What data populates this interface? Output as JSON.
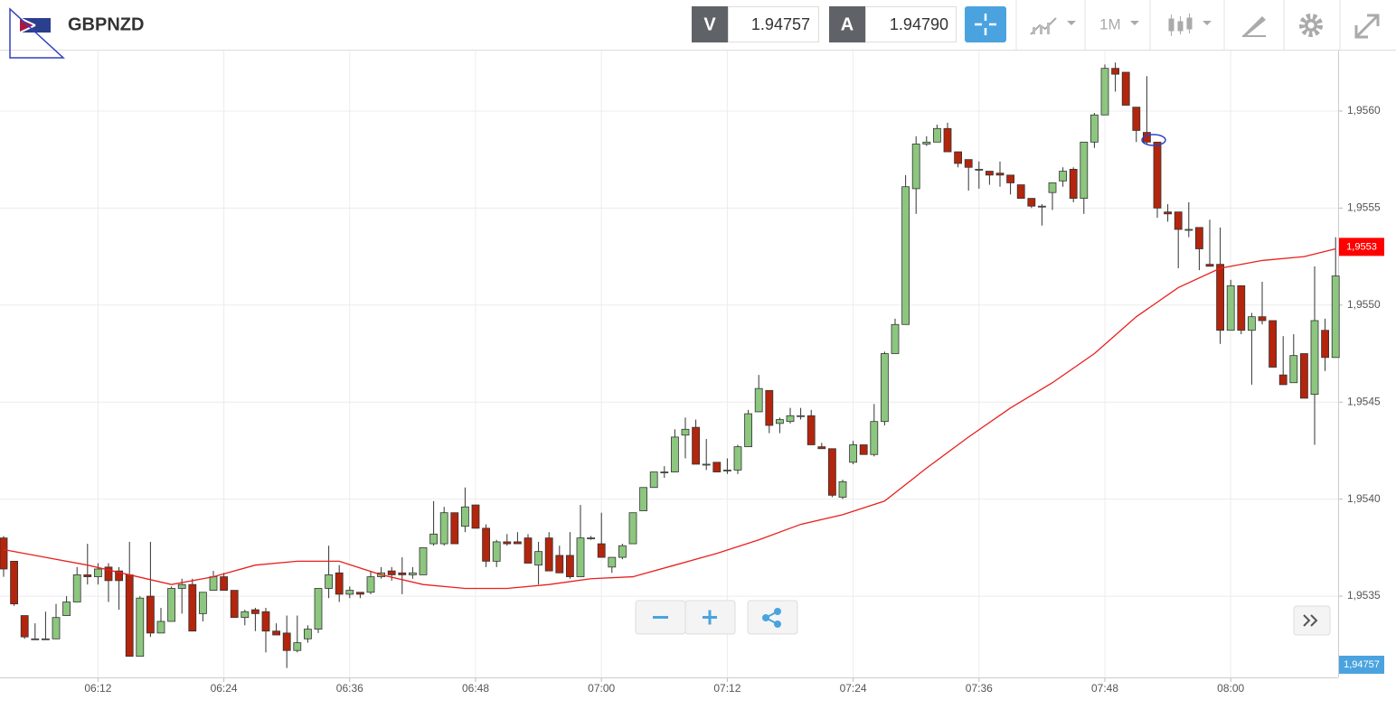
{
  "toolbar": {
    "symbol": "GBPNZD",
    "bid_label": "V",
    "bid": "1.94757",
    "ask_label": "A",
    "ask": "1.94790",
    "timeframe": "1M"
  },
  "chart_data": {
    "type": "candlestick",
    "categories": [
      "06:03",
      "06:04",
      "06:05",
      "06:06",
      "06:07",
      "06:08",
      "06:09",
      "06:10",
      "06:11",
      "06:12",
      "06:13",
      "06:14",
      "06:15",
      "06:16",
      "06:17",
      "06:18",
      "06:19",
      "06:20",
      "06:21",
      "06:22",
      "06:23",
      "06:24",
      "06:25",
      "06:26",
      "06:27",
      "06:28",
      "06:29",
      "06:30",
      "06:31",
      "06:32",
      "06:33",
      "06:34",
      "06:35",
      "06:36",
      "06:37",
      "06:38",
      "06:39",
      "06:40",
      "06:41",
      "06:42",
      "06:43",
      "06:44",
      "06:45",
      "06:46",
      "06:47",
      "06:48",
      "06:49",
      "06:50",
      "06:51",
      "06:52",
      "06:53",
      "06:54",
      "06:55",
      "06:56",
      "06:57",
      "06:58",
      "06:59",
      "07:00",
      "07:01",
      "07:02",
      "07:03",
      "07:04",
      "07:05",
      "07:06",
      "07:07",
      "07:08",
      "07:09",
      "07:10",
      "07:11",
      "07:12",
      "07:13",
      "07:14",
      "07:15",
      "07:16",
      "07:17",
      "07:18",
      "07:19",
      "07:20",
      "07:21",
      "07:22",
      "07:23",
      "07:24",
      "07:25",
      "07:26",
      "07:27",
      "07:28",
      "07:29",
      "07:30",
      "07:31",
      "07:32",
      "07:33",
      "07:34",
      "07:35",
      "07:36",
      "07:37",
      "07:38",
      "07:39",
      "07:40",
      "07:41",
      "07:42",
      "07:43",
      "07:44",
      "07:45",
      "07:46",
      "07:47",
      "07:48",
      "07:49",
      "07:50",
      "07:51",
      "07:52",
      "07:53",
      "07:54",
      "07:55",
      "07:56",
      "07:57",
      "07:58",
      "07:59",
      "08:00",
      "08:01",
      "08:02",
      "08:03",
      "08:04",
      "08:05",
      "08:06",
      "08:07",
      "08:08",
      "08:09",
      "08:10"
    ],
    "open": [
      1.9538,
      1.95368,
      1.9534,
      1.95328,
      1.95328,
      1.95328,
      1.9534,
      1.95347,
      1.95361,
      1.9536,
      1.95365,
      1.95363,
      1.95361,
      1.95319,
      1.9535,
      1.95331,
      1.95337,
      1.95354,
      1.95356,
      1.95341,
      1.95353,
      1.9536,
      1.95353,
      1.95339,
      1.95343,
      1.95342,
      1.95332,
      1.95331,
      1.95322,
      1.95328,
      1.95333,
      1.95354,
      1.95362,
      1.95351,
      1.95352,
      1.95352,
      1.9536,
      1.95363,
      1.95362,
      1.95361,
      1.95361,
      1.95377,
      1.95377,
      1.95393,
      1.95386,
      1.95397,
      1.95385,
      1.95368,
      1.95378,
      1.95378,
      1.9538,
      1.95366,
      1.9538,
      1.95371,
      1.95371,
      1.9536,
      1.9538,
      1.95377,
      1.95365,
      1.9537,
      1.95377,
      1.95394,
      1.95406,
      1.95414,
      1.95414,
      1.95433,
      1.95437,
      1.95418,
      1.95419,
      1.95415,
      1.95415,
      1.95427,
      1.95445,
      1.95456,
      1.95439,
      1.9544,
      1.95443,
      1.95443,
      1.95427,
      1.95426,
      1.95401,
      1.95419,
      1.95428,
      1.95423,
      1.9544,
      1.95475,
      1.9549,
      1.9556,
      1.95583,
      1.95584,
      1.95591,
      1.95579,
      1.95575,
      1.9557,
      1.95569,
      1.95568,
      1.95567,
      1.95562,
      1.95555,
      1.95551,
      1.95558,
      1.95564,
      1.9557,
      1.95555,
      1.95584,
      1.95598,
      1.95622,
      1.9562,
      1.95602,
      1.95589,
      1.95584,
      1.95548,
      1.95548,
      1.95539,
      1.9554,
      1.95521,
      1.95521,
      1.95487,
      1.9551,
      1.95487,
      1.95494,
      1.95492,
      1.95464,
      1.9546,
      1.95475,
      1.95454,
      1.95487,
      1.95473
    ],
    "high": [
      1.95381,
      1.95368,
      1.9534,
      1.95336,
      1.95342,
      1.95346,
      1.9535,
      1.95365,
      1.95377,
      1.95367,
      1.95367,
      1.95365,
      1.95378,
      1.9535,
      1.95378,
      1.95344,
      1.95355,
      1.95359,
      1.95359,
      1.95352,
      1.95363,
      1.95362,
      1.95353,
      1.95343,
      1.95344,
      1.95344,
      1.95336,
      1.9534,
      1.9534,
      1.95335,
      1.95354,
      1.95376,
      1.95366,
      1.95355,
      1.95352,
      1.95363,
      1.95365,
      1.95365,
      1.9537,
      1.95365,
      1.95375,
      1.95399,
      1.95396,
      1.95393,
      1.95406,
      1.95397,
      1.95387,
      1.95379,
      1.95382,
      1.95383,
      1.95382,
      1.95378,
      1.95383,
      1.95376,
      1.95383,
      1.95397,
      1.95381,
      1.95393,
      1.9537,
      1.95377,
      1.95393,
      1.95406,
      1.95414,
      1.95417,
      1.95436,
      1.95442,
      1.95441,
      1.95431,
      1.95419,
      1.95421,
      1.95428,
      1.95446,
      1.95464,
      1.95456,
      1.95442,
      1.95447,
      1.95447,
      1.95446,
      1.95429,
      1.95426,
      1.9541,
      1.9543,
      1.95428,
      1.95449,
      1.95476,
      1.95493,
      1.95567,
      1.95587,
      1.95587,
      1.95593,
      1.95594,
      1.95579,
      1.95575,
      1.95574,
      1.95569,
      1.95574,
      1.95567,
      1.95562,
      1.95555,
      1.95552,
      1.95563,
      1.95571,
      1.95571,
      1.95584,
      1.95599,
      1.95624,
      1.95625,
      1.9562,
      1.95602,
      1.95618,
      1.95584,
      1.95552,
      1.95548,
      1.95553,
      1.9554,
      1.95544,
      1.9554,
      1.95513,
      1.9551,
      1.95496,
      1.95512,
      1.95492,
      1.95484,
      1.95485,
      1.95475,
      1.9552,
      1.95493,
      1.95535
    ],
    "low": [
      1.9536,
      1.95345,
      1.95328,
      1.95328,
      1.95328,
      1.95328,
      1.9534,
      1.95347,
      1.95356,
      1.95356,
      1.95347,
      1.95343,
      1.95319,
      1.95319,
      1.95329,
      1.95331,
      1.95337,
      1.95341,
      1.95332,
      1.95337,
      1.95353,
      1.95353,
      1.95339,
      1.95335,
      1.95332,
      1.95321,
      1.9533,
      1.95313,
      1.95321,
      1.95326,
      1.95331,
      1.95349,
      1.95347,
      1.95349,
      1.95349,
      1.95351,
      1.95359,
      1.95358,
      1.95351,
      1.95359,
      1.95361,
      1.95376,
      1.95376,
      1.95377,
      1.95383,
      1.95385,
      1.95365,
      1.95365,
      1.95376,
      1.95377,
      1.95367,
      1.95356,
      1.95363,
      1.95362,
      1.95359,
      1.9536,
      1.95379,
      1.9537,
      1.95362,
      1.95369,
      1.95377,
      1.95394,
      1.95406,
      1.95411,
      1.95414,
      1.95421,
      1.95418,
      1.95415,
      1.95414,
      1.95413,
      1.95413,
      1.95427,
      1.95445,
      1.95434,
      1.95434,
      1.95439,
      1.95441,
      1.95428,
      1.95426,
      1.95401,
      1.954,
      1.95418,
      1.95423,
      1.95422,
      1.95438,
      1.95475,
      1.9549,
      1.95547,
      1.95582,
      1.95584,
      1.95579,
      1.95571,
      1.95559,
      1.9556,
      1.95562,
      1.95561,
      1.95557,
      1.95555,
      1.9555,
      1.95541,
      1.95549,
      1.95561,
      1.95553,
      1.95547,
      1.95581,
      1.95598,
      1.9561,
      1.95603,
      1.95584,
      1.95583,
      1.95545,
      1.95543,
      1.95519,
      1.95535,
      1.95518,
      1.9552,
      1.9548,
      1.95487,
      1.95485,
      1.95459,
      1.9549,
      1.95468,
      1.95459,
      1.9546,
      1.95452,
      1.95428,
      1.95466,
      1.95473
    ],
    "close": [
      1.95364,
      1.95346,
      1.95329,
      1.95328,
      1.95328,
      1.95339,
      1.95347,
      1.95361,
      1.9536,
      1.95364,
      1.95358,
      1.95358,
      1.95319,
      1.95349,
      1.95331,
      1.95337,
      1.95354,
      1.95356,
      1.95332,
      1.95352,
      1.9536,
      1.95353,
      1.95339,
      1.95342,
      1.95341,
      1.95332,
      1.9533,
      1.95322,
      1.95326,
      1.95333,
      1.95354,
      1.95361,
      1.95351,
      1.95353,
      1.95351,
      1.9536,
      1.95362,
      1.95361,
      1.95361,
      1.95362,
      1.95375,
      1.95382,
      1.95393,
      1.95377,
      1.95396,
      1.95385,
      1.95368,
      1.95378,
      1.95377,
      1.95377,
      1.95367,
      1.95373,
      1.95363,
      1.95362,
      1.9536,
      1.9538,
      1.9538,
      1.9537,
      1.9537,
      1.95376,
      1.95393,
      1.95406,
      1.95414,
      1.95414,
      1.95432,
      1.95436,
      1.95418,
      1.95418,
      1.95414,
      1.95415,
      1.95427,
      1.95444,
      1.95457,
      1.95438,
      1.95441,
      1.95443,
      1.95443,
      1.95428,
      1.95426,
      1.95402,
      1.95409,
      1.95428,
      1.95423,
      1.9544,
      1.95475,
      1.9549,
      1.95561,
      1.95583,
      1.95584,
      1.95591,
      1.95579,
      1.95573,
      1.95571,
      1.9557,
      1.95567,
      1.95567,
      1.95563,
      1.95555,
      1.95551,
      1.95551,
      1.95563,
      1.95569,
      1.95555,
      1.95584,
      1.95598,
      1.95622,
      1.95619,
      1.95603,
      1.9559,
      1.95584,
      1.9555,
      1.95547,
      1.95539,
      1.95539,
      1.95529,
      1.9552,
      1.95487,
      1.9551,
      1.95487,
      1.95494,
      1.95492,
      1.95468,
      1.95459,
      1.95474,
      1.95452,
      1.95492,
      1.95473,
      1.95515
    ],
    "up_color": "#8cc67f",
    "down_color": "#b3250c",
    "ma": {
      "color": "#e8201e",
      "x": [
        "06:03",
        "06:07",
        "06:11",
        "06:15",
        "06:19",
        "06:23",
        "06:27",
        "06:31",
        "06:35",
        "06:39",
        "06:43",
        "06:47",
        "06:51",
        "06:55",
        "06:59",
        "07:03",
        "07:07",
        "07:11",
        "07:15",
        "07:19",
        "07:23",
        "07:27",
        "07:31",
        "07:35",
        "07:39",
        "07:43",
        "07:47",
        "07:51",
        "07:55",
        "07:59",
        "08:03",
        "08:07",
        "08:10"
      ],
      "values": [
        1.95374,
        1.9537,
        1.95366,
        1.95361,
        1.95356,
        1.9536,
        1.95366,
        1.95368,
        1.95368,
        1.95361,
        1.95356,
        1.95354,
        1.95354,
        1.95356,
        1.95359,
        1.9536,
        1.95366,
        1.95372,
        1.95379,
        1.95387,
        1.95392,
        1.95399,
        1.95416,
        1.95432,
        1.95447,
        1.9546,
        1.95475,
        1.95494,
        1.95509,
        1.95519,
        1.95523,
        1.95525,
        1.95529
      ],
      "last_label": {
        "value": 1.9553,
        "label": "1,9553"
      }
    },
    "price_label": "1,94757",
    "ylim": [
      1.9531,
      1.9563
    ],
    "yticks": [
      {
        "value": 1.9535,
        "label": "1,9535"
      },
      {
        "value": 1.954,
        "label": "1,9540"
      },
      {
        "value": 1.9545,
        "label": "1,9545"
      },
      {
        "value": 1.955,
        "label": "1,9550"
      },
      {
        "value": 1.9555,
        "label": "1,9555"
      },
      {
        "value": 1.956,
        "label": "1,9560"
      }
    ],
    "xticks": [
      "06:12",
      "06:24",
      "06:36",
      "06:48",
      "07:00",
      "07:12",
      "07:24",
      "07:36",
      "07:48",
      "08:00"
    ],
    "grid": true
  }
}
